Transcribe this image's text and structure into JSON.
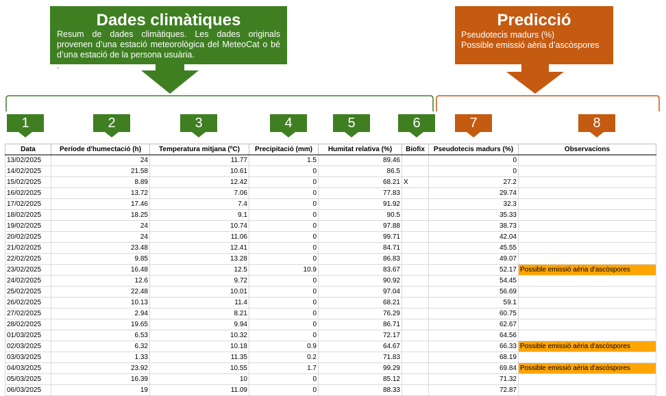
{
  "header_left": {
    "title": "Dades climàtiques",
    "description": "Resum de dades climàtiques. Les dades originals provenen d’una estació meteorològica del MeteoCat o bé d’una estació de la persona usuària.",
    "dot": ".",
    "color": "#3f7f22"
  },
  "header_right": {
    "title": "Predicció",
    "line1": "Pseudotecis madurs (%)",
    "line2": "Possible emissió aèria d’ascòspores",
    "color": "#c55a11"
  },
  "column_numbers": [
    "1",
    "2",
    "3",
    "4",
    "5",
    "6",
    "7",
    "8"
  ],
  "table": {
    "headers": [
      "Data",
      "Període d'humectació (h)",
      "Temperatura mitjana (ºC)",
      "Precipitació (mm)",
      "Humitat relativa (%)",
      "Biofix",
      "Pseudotecis madurs (%)",
      "Observacions"
    ],
    "highlight_color": "#ffa500",
    "rows": [
      [
        "13/02/2025",
        "24",
        "11.77",
        "1.5",
        "89.46",
        "",
        "0",
        ""
      ],
      [
        "14/02/2025",
        "21.58",
        "10.61",
        "0",
        "86.5",
        "",
        "0",
        ""
      ],
      [
        "15/02/2025",
        "8.89",
        "12.42",
        "0",
        "68.21",
        "X",
        "27.2",
        ""
      ],
      [
        "16/02/2025",
        "13.72",
        "7.06",
        "0",
        "77.83",
        "",
        "29.74",
        ""
      ],
      [
        "17/02/2025",
        "17.46",
        "7.4",
        "0",
        "91.92",
        "",
        "32.3",
        ""
      ],
      [
        "18/02/2025",
        "18.25",
        "9.1",
        "0",
        "90.5",
        "",
        "35.33",
        ""
      ],
      [
        "19/02/2025",
        "24",
        "10.74",
        "0",
        "97.88",
        "",
        "38.73",
        ""
      ],
      [
        "20/02/2025",
        "24",
        "11.06",
        "0",
        "99.71",
        "",
        "42.04",
        ""
      ],
      [
        "21/02/2025",
        "23.48",
        "12.41",
        "0",
        "84.71",
        "",
        "45.55",
        ""
      ],
      [
        "22/02/2025",
        "9.85",
        "13.28",
        "0",
        "86.83",
        "",
        "49.07",
        ""
      ],
      [
        "23/02/2025",
        "16.48",
        "12.5",
        "10.9",
        "83.67",
        "",
        "52.17",
        "Possible emissió aèria d'ascòspores"
      ],
      [
        "24/02/2025",
        "12.6",
        "9.72",
        "0",
        "90.92",
        "",
        "54.45",
        ""
      ],
      [
        "25/02/2025",
        "22.48",
        "10.01",
        "0",
        "97.04",
        "",
        "56.69",
        ""
      ],
      [
        "26/02/2025",
        "10.13",
        "11.4",
        "0",
        "68.21",
        "",
        "59.1",
        ""
      ],
      [
        "27/02/2025",
        "2.94",
        "8.21",
        "0",
        "76.29",
        "",
        "60.75",
        ""
      ],
      [
        "28/02/2025",
        "19.65",
        "9.94",
        "0",
        "86.71",
        "",
        "62.67",
        ""
      ],
      [
        "01/03/2025",
        "6.53",
        "10.32",
        "0",
        "72.17",
        "",
        "64.56",
        ""
      ],
      [
        "02/03/2025",
        "6.32",
        "10.18",
        "0.9",
        "64.67",
        "",
        "66.33",
        "Possible emissió aèria d'ascòspores"
      ],
      [
        "03/03/2025",
        "1.33",
        "11.35",
        "0.2",
        "71.83",
        "",
        "68.19",
        ""
      ],
      [
        "04/03/2025",
        "23.92",
        "10.55",
        "1.7",
        "99.29",
        "",
        "69.84",
        "Possible emissió aèria d'ascòspores"
      ],
      [
        "05/03/2025",
        "16.39",
        "10",
        "0",
        "85.12",
        "",
        "71.32",
        ""
      ],
      [
        "06/03/2025",
        "19",
        "11.09",
        "0",
        "88.33",
        "",
        "72.87",
        ""
      ]
    ]
  }
}
